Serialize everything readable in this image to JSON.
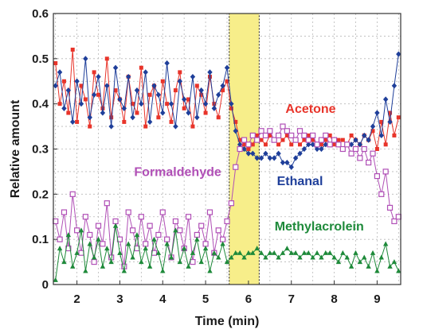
{
  "chart_data": {
    "type": "line",
    "title": "",
    "xlabel": "Time (min)",
    "ylabel": "Relative amount",
    "xlim": [
      1.45,
      9.55
    ],
    "ylim": [
      0,
      0.6
    ],
    "x_ticks": [
      "2",
      "3",
      "4",
      "5",
      "6",
      "7",
      "8",
      "9"
    ],
    "y_ticks": [
      "0",
      "0.1",
      "0.2",
      "0.3",
      "0.4",
      "0.5",
      "0.6"
    ],
    "grid": true,
    "highlight_region": {
      "x_start": 5.55,
      "x_end": 6.25,
      "color": "#f7ee8a"
    },
    "series": [
      {
        "name": "Acetone",
        "color": "#e8342a",
        "marker": "square",
        "x": [
          1.5,
          1.6,
          1.7,
          1.8,
          1.9,
          2.0,
          2.1,
          2.2,
          2.3,
          2.4,
          2.5,
          2.6,
          2.7,
          2.8,
          2.9,
          3.0,
          3.1,
          3.2,
          3.3,
          3.4,
          3.5,
          3.6,
          3.7,
          3.8,
          3.9,
          4.0,
          4.1,
          4.2,
          4.3,
          4.4,
          4.5,
          4.6,
          4.7,
          4.8,
          4.9,
          5.0,
          5.1,
          5.2,
          5.3,
          5.4,
          5.5,
          5.6,
          5.7,
          5.8,
          5.9,
          6.0,
          6.1,
          6.2,
          6.3,
          6.4,
          6.5,
          6.6,
          6.7,
          6.8,
          6.9,
          7.0,
          7.1,
          7.2,
          7.3,
          7.4,
          7.5,
          7.6,
          7.7,
          7.8,
          7.9,
          8.0,
          8.1,
          8.2,
          8.3,
          8.4,
          8.5,
          8.6,
          8.7,
          8.8,
          8.9,
          9.0,
          9.1,
          9.2,
          9.3,
          9.4,
          9.5
        ],
        "values": [
          0.49,
          0.4,
          0.45,
          0.38,
          0.52,
          0.36,
          0.44,
          0.41,
          0.35,
          0.47,
          0.42,
          0.39,
          0.5,
          0.37,
          0.43,
          0.41,
          0.36,
          0.46,
          0.4,
          0.38,
          0.48,
          0.35,
          0.42,
          0.44,
          0.37,
          0.45,
          0.4,
          0.36,
          0.43,
          0.47,
          0.39,
          0.41,
          0.35,
          0.44,
          0.42,
          0.38,
          0.46,
          0.4,
          0.37,
          0.43,
          0.45,
          0.39,
          0.36,
          0.32,
          0.31,
          0.3,
          0.31,
          0.33,
          0.32,
          0.31,
          0.33,
          0.32,
          0.31,
          0.32,
          0.33,
          0.31,
          0.32,
          0.31,
          0.32,
          0.33,
          0.32,
          0.31,
          0.31,
          0.32,
          0.33,
          0.31,
          0.32,
          0.32,
          0.31,
          0.33,
          0.32,
          0.31,
          0.33,
          0.32,
          0.34,
          0.3,
          0.36,
          0.31,
          0.38,
          0.33,
          0.37
        ]
      },
      {
        "name": "Ethanal",
        "color": "#1f3f9a",
        "marker": "diamond",
        "x": [
          1.5,
          1.6,
          1.7,
          1.8,
          1.9,
          2.0,
          2.1,
          2.2,
          2.3,
          2.4,
          2.5,
          2.6,
          2.7,
          2.8,
          2.9,
          3.0,
          3.1,
          3.2,
          3.3,
          3.4,
          3.5,
          3.6,
          3.7,
          3.8,
          3.9,
          4.0,
          4.1,
          4.2,
          4.3,
          4.4,
          4.5,
          4.6,
          4.7,
          4.8,
          4.9,
          5.0,
          5.1,
          5.2,
          5.3,
          5.4,
          5.5,
          5.6,
          5.7,
          5.8,
          5.9,
          6.0,
          6.1,
          6.2,
          6.3,
          6.4,
          6.5,
          6.6,
          6.7,
          6.8,
          6.9,
          7.0,
          7.1,
          7.2,
          7.3,
          7.4,
          7.5,
          7.6,
          7.7,
          7.8,
          7.9,
          8.0,
          8.1,
          8.2,
          8.3,
          8.4,
          8.5,
          8.6,
          8.7,
          8.8,
          8.9,
          9.0,
          9.1,
          9.2,
          9.3,
          9.4,
          9.5
        ],
        "values": [
          0.44,
          0.47,
          0.39,
          0.43,
          0.36,
          0.45,
          0.4,
          0.5,
          0.37,
          0.42,
          0.46,
          0.38,
          0.44,
          0.35,
          0.48,
          0.41,
          0.39,
          0.46,
          0.37,
          0.43,
          0.4,
          0.47,
          0.36,
          0.44,
          0.42,
          0.38,
          0.49,
          0.4,
          0.35,
          0.45,
          0.41,
          0.38,
          0.46,
          0.37,
          0.43,
          0.4,
          0.47,
          0.39,
          0.42,
          0.44,
          0.48,
          0.4,
          0.34,
          0.31,
          0.3,
          0.29,
          0.29,
          0.28,
          0.28,
          0.29,
          0.28,
          0.28,
          0.29,
          0.27,
          0.27,
          0.26,
          0.28,
          0.29,
          0.3,
          0.31,
          0.31,
          0.3,
          0.3,
          0.31,
          0.31,
          0.32,
          0.31,
          0.3,
          0.31,
          0.31,
          0.32,
          0.31,
          0.33,
          0.32,
          0.35,
          0.38,
          0.33,
          0.41,
          0.36,
          0.44,
          0.51
        ]
      },
      {
        "name": "Formaldehyde",
        "color": "#b04fb6",
        "marker": "open-square",
        "x": [
          1.5,
          1.6,
          1.7,
          1.8,
          1.9,
          2.0,
          2.1,
          2.2,
          2.3,
          2.4,
          2.5,
          2.6,
          2.7,
          2.8,
          2.9,
          3.0,
          3.1,
          3.2,
          3.3,
          3.4,
          3.5,
          3.6,
          3.7,
          3.8,
          3.9,
          4.0,
          4.1,
          4.2,
          4.3,
          4.4,
          4.5,
          4.6,
          4.7,
          4.8,
          4.9,
          5.0,
          5.1,
          5.2,
          5.3,
          5.4,
          5.5,
          5.6,
          5.7,
          5.8,
          5.9,
          6.0,
          6.1,
          6.2,
          6.3,
          6.4,
          6.5,
          6.6,
          6.7,
          6.8,
          6.9,
          7.0,
          7.1,
          7.2,
          7.3,
          7.4,
          7.5,
          7.6,
          7.7,
          7.8,
          7.9,
          8.0,
          8.1,
          8.2,
          8.3,
          8.4,
          8.5,
          8.6,
          8.7,
          8.8,
          8.9,
          9.0,
          9.1,
          9.2,
          9.3,
          9.4,
          9.5
        ],
        "values": [
          0.14,
          0.1,
          0.16,
          0.08,
          0.2,
          0.12,
          0.07,
          0.15,
          0.11,
          0.05,
          0.13,
          0.09,
          0.18,
          0.06,
          0.14,
          0.1,
          0.04,
          0.16,
          0.12,
          0.08,
          0.15,
          0.09,
          0.13,
          0.07,
          0.11,
          0.16,
          0.1,
          0.06,
          0.14,
          0.12,
          0.08,
          0.15,
          0.05,
          0.11,
          0.13,
          0.09,
          0.16,
          0.07,
          0.12,
          0.1,
          0.14,
          0.18,
          0.26,
          0.3,
          0.32,
          0.31,
          0.33,
          0.32,
          0.34,
          0.33,
          0.34,
          0.32,
          0.33,
          0.35,
          0.34,
          0.33,
          0.32,
          0.34,
          0.33,
          0.32,
          0.33,
          0.31,
          0.32,
          0.33,
          0.31,
          0.32,
          0.31,
          0.3,
          0.31,
          0.29,
          0.3,
          0.28,
          0.3,
          0.27,
          0.29,
          0.24,
          0.2,
          0.25,
          0.17,
          0.14,
          0.15
        ]
      },
      {
        "name": "Methylacrolein",
        "color": "#1e8a3a",
        "marker": "triangle",
        "x": [
          1.5,
          1.6,
          1.7,
          1.8,
          1.9,
          2.0,
          2.1,
          2.2,
          2.3,
          2.4,
          2.5,
          2.6,
          2.7,
          2.8,
          2.9,
          3.0,
          3.1,
          3.2,
          3.3,
          3.4,
          3.5,
          3.6,
          3.7,
          3.8,
          3.9,
          4.0,
          4.1,
          4.2,
          4.3,
          4.4,
          4.5,
          4.6,
          4.7,
          4.8,
          4.9,
          5.0,
          5.1,
          5.2,
          5.3,
          5.4,
          5.5,
          5.6,
          5.7,
          5.8,
          5.9,
          6.0,
          6.1,
          6.2,
          6.3,
          6.4,
          6.5,
          6.6,
          6.7,
          6.8,
          6.9,
          7.0,
          7.1,
          7.2,
          7.3,
          7.4,
          7.5,
          7.6,
          7.7,
          7.8,
          7.9,
          8.0,
          8.1,
          8.2,
          8.3,
          8.4,
          8.5,
          8.6,
          8.7,
          8.8,
          8.9,
          9.0,
          9.1,
          9.2,
          9.3,
          9.4,
          9.5
        ],
        "values": [
          0.01,
          0.08,
          0.05,
          0.11,
          0.04,
          0.07,
          0.12,
          0.03,
          0.09,
          0.06,
          0.1,
          0.04,
          0.08,
          0.05,
          0.13,
          0.07,
          0.03,
          0.09,
          0.06,
          0.11,
          0.05,
          0.08,
          0.04,
          0.1,
          0.07,
          0.03,
          0.09,
          0.06,
          0.12,
          0.05,
          0.08,
          0.04,
          0.07,
          0.1,
          0.05,
          0.08,
          0.03,
          0.07,
          0.06,
          0.09,
          0.05,
          0.06,
          0.07,
          0.07,
          0.06,
          0.07,
          0.07,
          0.08,
          0.07,
          0.06,
          0.07,
          0.07,
          0.06,
          0.07,
          0.08,
          0.07,
          0.07,
          0.06,
          0.07,
          0.07,
          0.06,
          0.07,
          0.06,
          0.07,
          0.07,
          0.06,
          0.05,
          0.07,
          0.06,
          0.04,
          0.07,
          0.05,
          0.06,
          0.04,
          0.07,
          0.03,
          0.06,
          0.09,
          0.04,
          0.05,
          0.03
        ]
      }
    ],
    "labels": [
      {
        "text": "Acetone",
        "x": 7.45,
        "y": 0.38,
        "color": "#e8342a"
      },
      {
        "text": "Ethanal",
        "x": 7.2,
        "y": 0.22,
        "color": "#1f3f9a"
      },
      {
        "text": "Formaldehyde",
        "x": 4.35,
        "y": 0.24,
        "color": "#b04fb6"
      },
      {
        "text": "Methylacrolein",
        "x": 7.65,
        "y": 0.12,
        "color": "#1e8a3a"
      }
    ]
  }
}
